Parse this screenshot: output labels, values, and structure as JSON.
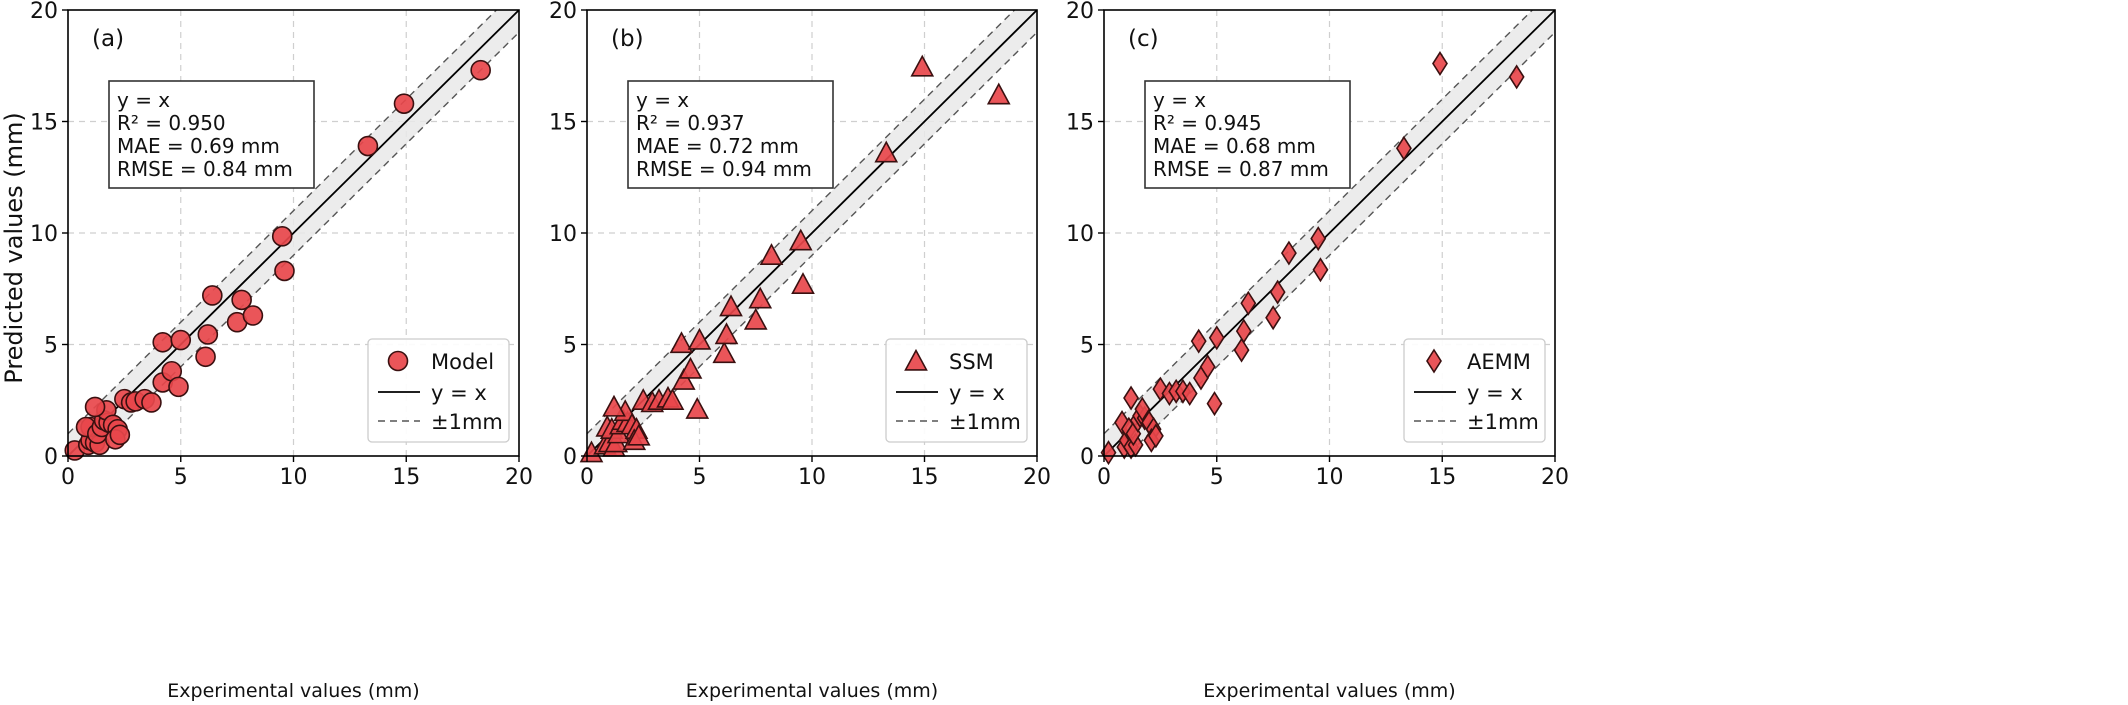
{
  "figure": {
    "ylabel": "Predicted values (mm)",
    "xlabel": "Experimental values (mm)"
  },
  "chart_data": [
    {
      "type": "scatter",
      "panel_label": "(a)",
      "marker": "circle",
      "color": "#e8474b",
      "edge_color": "#3a1010",
      "xlabel": "Experimental values (mm)",
      "ylabel": "Predicted values (mm)",
      "xlim": [
        0,
        20
      ],
      "ylim": [
        0,
        20
      ],
      "xticks": [
        0,
        5,
        10,
        15,
        20
      ],
      "yticks": [
        0,
        5,
        10,
        15,
        20
      ],
      "grid": true,
      "band": "±1mm",
      "legend": {
        "placement": "bottom-right",
        "entries": [
          "Model",
          "y = x",
          "±1mm"
        ]
      },
      "stats": [
        "y = x",
        "R² = 0.950",
        "MAE = 0.69 mm",
        "RMSE = 0.84 mm"
      ],
      "points": [
        {
          "x": 0.3,
          "y": 0.25
        },
        {
          "x": 0.9,
          "y": 0.5
        },
        {
          "x": 1.0,
          "y": 0.7
        },
        {
          "x": 1.2,
          "y": 0.6
        },
        {
          "x": 1.4,
          "y": 0.5
        },
        {
          "x": 1.0,
          "y": 1.3
        },
        {
          "x": 0.8,
          "y": 1.3
        },
        {
          "x": 1.3,
          "y": 1.0
        },
        {
          "x": 1.5,
          "y": 1.3
        },
        {
          "x": 1.6,
          "y": 1.6
        },
        {
          "x": 1.8,
          "y": 1.5
        },
        {
          "x": 1.7,
          "y": 2.05
        },
        {
          "x": 1.2,
          "y": 2.2
        },
        {
          "x": 2.0,
          "y": 1.4
        },
        {
          "x": 2.2,
          "y": 1.2
        },
        {
          "x": 2.1,
          "y": 0.75
        },
        {
          "x": 2.3,
          "y": 0.95
        },
        {
          "x": 2.5,
          "y": 2.55
        },
        {
          "x": 2.8,
          "y": 2.4
        },
        {
          "x": 3.0,
          "y": 2.45
        },
        {
          "x": 3.4,
          "y": 2.55
        },
        {
          "x": 3.7,
          "y": 2.4
        },
        {
          "x": 4.2,
          "y": 3.3
        },
        {
          "x": 4.2,
          "y": 5.1
        },
        {
          "x": 4.6,
          "y": 3.8
        },
        {
          "x": 4.9,
          "y": 3.1
        },
        {
          "x": 5.0,
          "y": 5.2
        },
        {
          "x": 6.1,
          "y": 4.45
        },
        {
          "x": 6.2,
          "y": 5.45
        },
        {
          "x": 6.4,
          "y": 7.2
        },
        {
          "x": 7.5,
          "y": 6.0
        },
        {
          "x": 7.7,
          "y": 7.0
        },
        {
          "x": 8.2,
          "y": 6.3
        },
        {
          "x": 9.5,
          "y": 9.85
        },
        {
          "x": 9.6,
          "y": 8.3
        },
        {
          "x": 13.3,
          "y": 13.9
        },
        {
          "x": 14.9,
          "y": 15.8
        },
        {
          "x": 18.3,
          "y": 17.3
        }
      ]
    },
    {
      "type": "scatter",
      "panel_label": "(b)",
      "marker": "triangle",
      "color": "#e8474b",
      "edge_color": "#3a1010",
      "xlabel": "Experimental values (mm)",
      "ylabel": "",
      "xlim": [
        0,
        20
      ],
      "ylim": [
        0,
        20
      ],
      "xticks": [
        0,
        5,
        10,
        15,
        20
      ],
      "yticks": [
        0,
        5,
        10,
        15,
        20
      ],
      "grid": true,
      "band": "±1mm",
      "legend": {
        "placement": "bottom-right",
        "entries": [
          "SSM",
          "y = x",
          "±1mm"
        ]
      },
      "stats": [
        "y = x",
        "R² = 0.937",
        "MAE = 0.72 mm",
        "RMSE = 0.94 mm"
      ],
      "points": [
        {
          "x": 0.2,
          "y": 0.15
        },
        {
          "x": 0.8,
          "y": 0.5
        },
        {
          "x": 1.0,
          "y": 0.6
        },
        {
          "x": 1.2,
          "y": 0.4
        },
        {
          "x": 1.3,
          "y": 0.6
        },
        {
          "x": 0.9,
          "y": 1.3
        },
        {
          "x": 1.1,
          "y": 1.2
        },
        {
          "x": 1.4,
          "y": 1.0
        },
        {
          "x": 1.5,
          "y": 1.4
        },
        {
          "x": 1.6,
          "y": 1.6
        },
        {
          "x": 1.8,
          "y": 1.5
        },
        {
          "x": 1.7,
          "y": 2.0
        },
        {
          "x": 1.2,
          "y": 2.2
        },
        {
          "x": 2.0,
          "y": 1.4
        },
        {
          "x": 2.2,
          "y": 1.2
        },
        {
          "x": 2.1,
          "y": 0.7
        },
        {
          "x": 2.3,
          "y": 0.9
        },
        {
          "x": 2.5,
          "y": 2.5
        },
        {
          "x": 2.9,
          "y": 2.4
        },
        {
          "x": 3.2,
          "y": 2.5
        },
        {
          "x": 3.6,
          "y": 2.6
        },
        {
          "x": 3.8,
          "y": 2.5
        },
        {
          "x": 4.3,
          "y": 3.4
        },
        {
          "x": 4.2,
          "y": 5.05
        },
        {
          "x": 4.6,
          "y": 3.9
        },
        {
          "x": 4.9,
          "y": 2.1
        },
        {
          "x": 5.0,
          "y": 5.2
        },
        {
          "x": 6.1,
          "y": 4.6
        },
        {
          "x": 6.2,
          "y": 5.45
        },
        {
          "x": 6.4,
          "y": 6.7
        },
        {
          "x": 7.5,
          "y": 6.1
        },
        {
          "x": 7.7,
          "y": 7.05
        },
        {
          "x": 8.2,
          "y": 9.0
        },
        {
          "x": 9.5,
          "y": 9.65
        },
        {
          "x": 9.6,
          "y": 7.7
        },
        {
          "x": 13.3,
          "y": 13.6
        },
        {
          "x": 14.9,
          "y": 17.45
        },
        {
          "x": 18.3,
          "y": 16.2
        }
      ]
    },
    {
      "type": "scatter",
      "panel_label": "(c)",
      "marker": "diamond",
      "color": "#e8474b",
      "edge_color": "#3a1010",
      "xlabel": "Experimental values (mm)",
      "ylabel": "",
      "xlim": [
        0,
        20
      ],
      "ylim": [
        0,
        20
      ],
      "xticks": [
        0,
        5,
        10,
        15,
        20
      ],
      "yticks": [
        0,
        5,
        10,
        15,
        20
      ],
      "grid": true,
      "band": "±1mm",
      "legend": {
        "placement": "bottom-right",
        "entries": [
          "AEMM",
          "y = x",
          "±1mm"
        ]
      },
      "stats": [
        "y = x",
        "R² = 0.945",
        "MAE = 0.68 mm",
        "RMSE = 0.87 mm"
      ],
      "points": [
        {
          "x": 0.2,
          "y": 0.15
        },
        {
          "x": 0.9,
          "y": 0.4
        },
        {
          "x": 1.0,
          "y": 0.7
        },
        {
          "x": 1.2,
          "y": 0.4
        },
        {
          "x": 1.4,
          "y": 0.5
        },
        {
          "x": 0.8,
          "y": 1.5
        },
        {
          "x": 1.1,
          "y": 1.2
        },
        {
          "x": 1.3,
          "y": 1.0
        },
        {
          "x": 1.5,
          "y": 1.6
        },
        {
          "x": 1.6,
          "y": 1.8
        },
        {
          "x": 1.8,
          "y": 1.7
        },
        {
          "x": 1.7,
          "y": 2.1
        },
        {
          "x": 1.2,
          "y": 2.6
        },
        {
          "x": 2.0,
          "y": 1.5
        },
        {
          "x": 2.2,
          "y": 1.2
        },
        {
          "x": 2.1,
          "y": 0.7
        },
        {
          "x": 2.3,
          "y": 0.9
        },
        {
          "x": 2.5,
          "y": 3.0
        },
        {
          "x": 2.9,
          "y": 2.8
        },
        {
          "x": 3.2,
          "y": 2.9
        },
        {
          "x": 3.5,
          "y": 2.9
        },
        {
          "x": 3.8,
          "y": 2.8
        },
        {
          "x": 4.3,
          "y": 3.5
        },
        {
          "x": 4.2,
          "y": 5.15
        },
        {
          "x": 4.6,
          "y": 4.0
        },
        {
          "x": 4.9,
          "y": 2.35
        },
        {
          "x": 5.0,
          "y": 5.3
        },
        {
          "x": 6.1,
          "y": 4.75
        },
        {
          "x": 6.2,
          "y": 5.6
        },
        {
          "x": 6.4,
          "y": 6.85
        },
        {
          "x": 7.5,
          "y": 6.2
        },
        {
          "x": 7.7,
          "y": 7.35
        },
        {
          "x": 8.2,
          "y": 9.1
        },
        {
          "x": 9.5,
          "y": 9.75
        },
        {
          "x": 9.6,
          "y": 8.35
        },
        {
          "x": 13.3,
          "y": 13.8
        },
        {
          "x": 14.9,
          "y": 17.6
        },
        {
          "x": 18.3,
          "y": 17.0
        }
      ]
    }
  ]
}
